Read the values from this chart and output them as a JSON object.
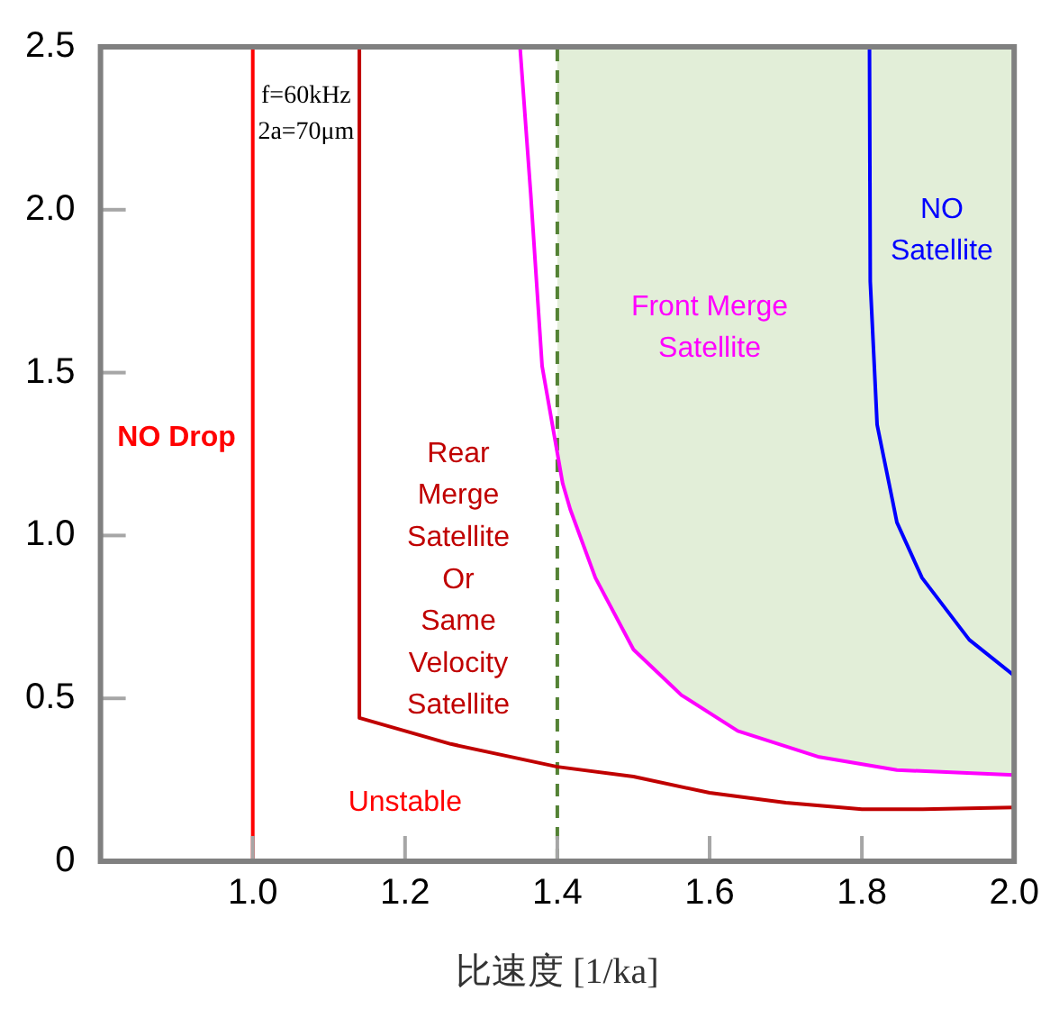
{
  "chart_data": {
    "type": "line",
    "xlabel": "比速度 [1/ka]",
    "xlim": [
      0.8,
      2.0
    ],
    "xticks": [
      {
        "value": 1.0,
        "label": "1.0"
      },
      1.2,
      1.4,
      1.6,
      1.8,
      {
        "value": 2.0,
        "label": "2.0"
      }
    ],
    "ylim": [
      0,
      2.5
    ],
    "yticks": [
      0,
      0.5,
      {
        "value": 1.0,
        "label": "1.0"
      },
      1.5,
      {
        "value": 2.0,
        "label": "2.0"
      },
      2.5
    ],
    "grid": false,
    "legend": false,
    "marker": "none",
    "series": [
      {
        "color": "#ff0000",
        "x": [
          1.0,
          1.0
        ],
        "values": [
          0,
          2.5
        ]
      },
      {
        "color": "#c00000",
        "x": [
          1.14,
          1.14,
          1.26,
          1.4,
          1.5,
          1.6,
          1.7,
          1.8,
          1.88,
          2.0
        ],
        "values": [
          2.5,
          0.44,
          0.36,
          0.29,
          0.26,
          0.21,
          0.18,
          0.16,
          0.16,
          0.165
        ]
      },
      {
        "color": "#ff00ff",
        "x": [
          1.351,
          1.365,
          1.38,
          1.407,
          1.417,
          1.45,
          1.5,
          1.563,
          1.637,
          1.744,
          1.846,
          2.0
        ],
        "values": [
          2.5,
          2.05,
          1.52,
          1.16,
          1.08,
          0.87,
          0.65,
          0.51,
          0.4,
          0.32,
          0.28,
          0.265
        ]
      },
      {
        "color": "#0000ff",
        "x": [
          1.81,
          1.811,
          1.82,
          1.84,
          1.846,
          1.879,
          1.941,
          2.0
        ],
        "values": [
          2.5,
          1.78,
          1.34,
          1.11,
          1.04,
          0.87,
          0.68,
          0.57
        ]
      }
    ],
    "ref_lines": [
      {
        "axis": "x",
        "value": 1.4,
        "color": "#548235",
        "line_style": "dashed"
      }
    ],
    "bands": [
      {
        "axis": "x",
        "from": 1.4,
        "to": 2.0,
        "color": "#e2eed8"
      }
    ],
    "annotations": [
      "f=60kHz\n2a=70μm",
      "NO Drop",
      "Rear\nMerge\nSatellite\nOr\nSame\nVelocity\nSatellite",
      "Front Merge\nSatellite",
      "NO\nSatellite",
      "Unstable"
    ]
  }
}
